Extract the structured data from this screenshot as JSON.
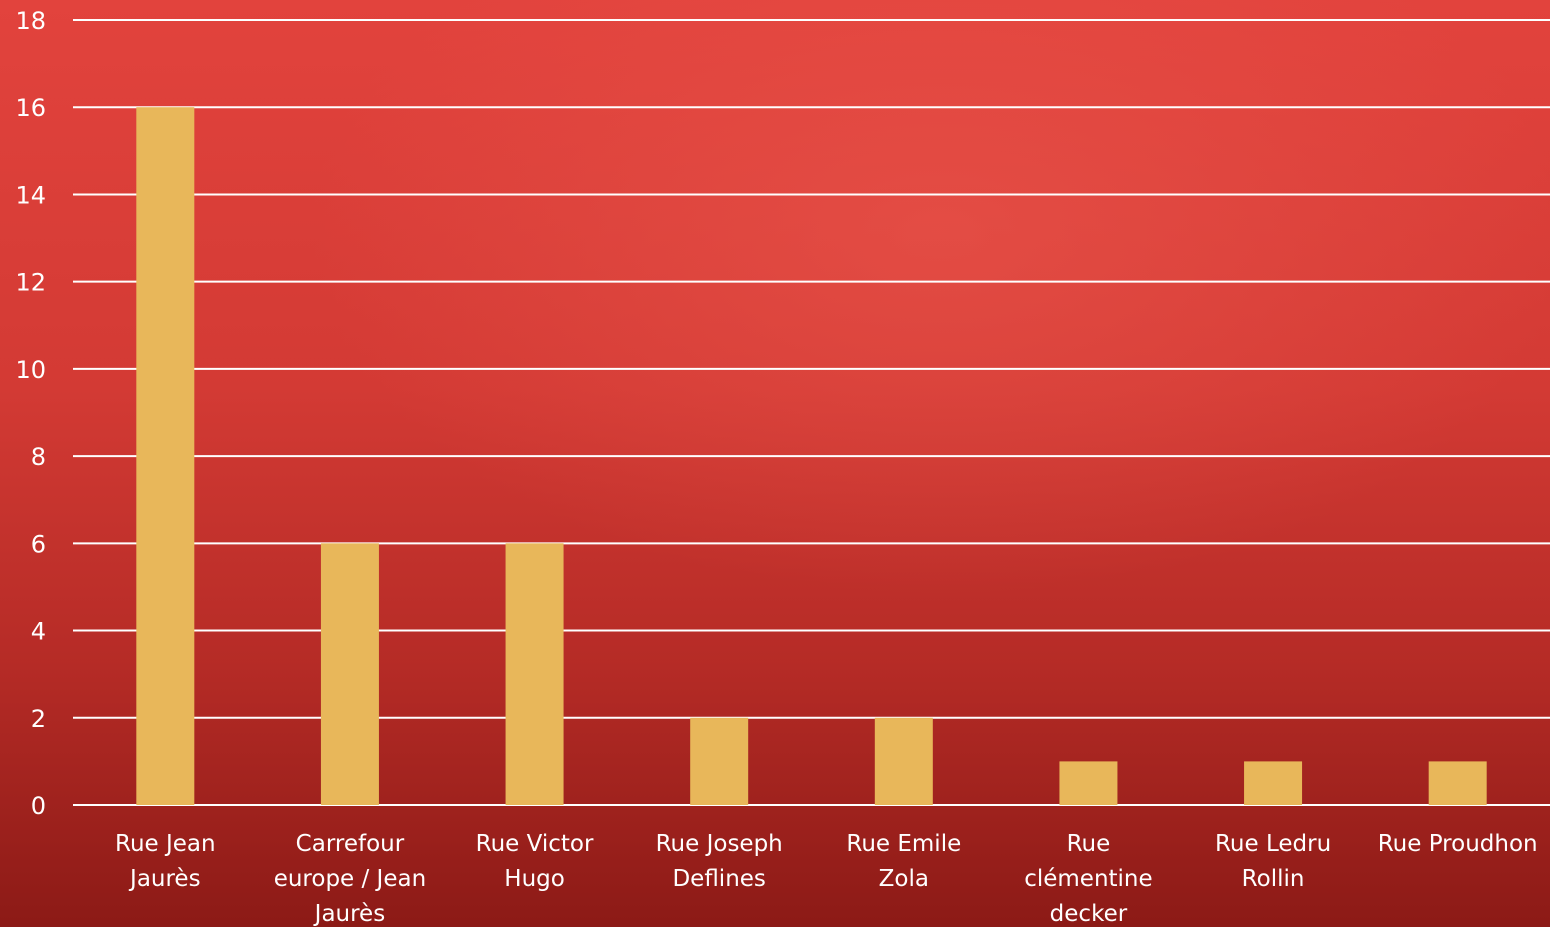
{
  "chart_data": {
    "type": "bar",
    "title": "",
    "xlabel": "",
    "ylabel": "",
    "ylim": [
      0,
      18
    ],
    "yticks": [
      0,
      2,
      4,
      6,
      8,
      10,
      12,
      14,
      16,
      18
    ],
    "grid": true,
    "legend": "none",
    "categories": [
      [
        "Rue Jean",
        "Jaurès"
      ],
      [
        "Carrefour",
        "europe / Jean",
        "Jaurès"
      ],
      [
        "Rue Victor",
        "Hugo"
      ],
      [
        "Rue Joseph",
        "Deflines"
      ],
      [
        "Rue Emile",
        "Zola"
      ],
      [
        "Rue",
        "clémentine",
        "decker"
      ],
      [
        "Rue Ledru",
        "Rollin"
      ],
      [
        "Rue Proudhon"
      ]
    ],
    "values": [
      16,
      6,
      6,
      2,
      2,
      1,
      1,
      1
    ],
    "colors": {
      "bar": "#e8b75a",
      "gridline": "#ffffff",
      "text": "#ffffff"
    }
  }
}
